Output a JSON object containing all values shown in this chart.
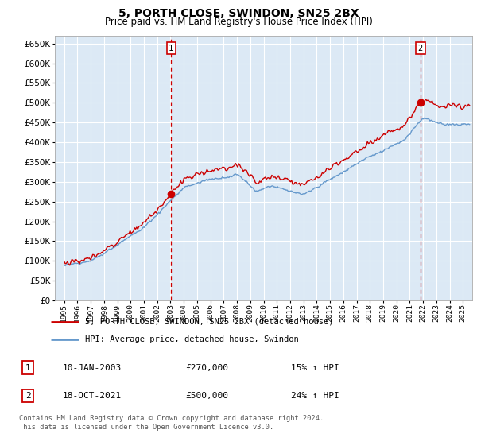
{
  "title": "5, PORTH CLOSE, SWINDON, SN25 2BX",
  "subtitle": "Price paid vs. HM Land Registry's House Price Index (HPI)",
  "legend_line1": "5, PORTH CLOSE, SWINDON, SN25 2BX (detached house)",
  "legend_line2": "HPI: Average price, detached house, Swindon",
  "sale1_date": "10-JAN-2003",
  "sale1_price": "£270,000",
  "sale1_hpi": "15% ↑ HPI",
  "sale2_date": "18-OCT-2021",
  "sale2_price": "£500,000",
  "sale2_hpi": "24% ↑ HPI",
  "footnote1": "Contains HM Land Registry data © Crown copyright and database right 2024.",
  "footnote2": "This data is licensed under the Open Government Licence v3.0.",
  "red_color": "#cc0000",
  "blue_color": "#6699cc",
  "plot_bg_color": "#dce9f5",
  "sale1_year": 2003.05,
  "sale2_year": 2021.8,
  "sale1_value": 270000,
  "sale2_value": 500000,
  "ylim_min": 0,
  "ylim_max": 670000,
  "yticks": [
    0,
    50000,
    100000,
    150000,
    200000,
    250000,
    300000,
    350000,
    400000,
    450000,
    500000,
    550000,
    600000,
    650000
  ],
  "xlim_min": 1994.3,
  "xlim_max": 2025.7
}
